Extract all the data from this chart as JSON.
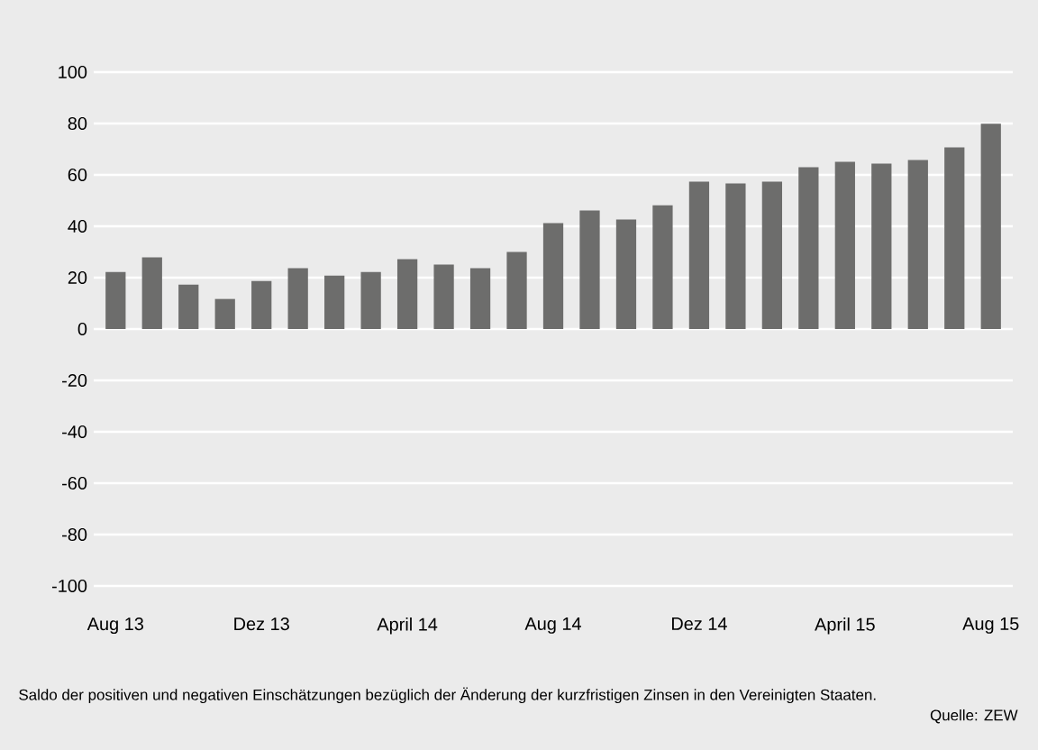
{
  "chart_data": {
    "type": "bar",
    "categories": [
      "Aug 13",
      null,
      null,
      null,
      "Dez 13",
      null,
      null,
      null,
      "April 14",
      null,
      null,
      null,
      "Aug 14",
      null,
      null,
      null,
      "Dez 14",
      null,
      null,
      null,
      "April 15",
      null,
      null,
      null,
      "Aug 15"
    ],
    "values": [
      22.2,
      27.9,
      17.3,
      11.7,
      18.7,
      23.7,
      20.8,
      22.2,
      27.2,
      25.1,
      23.7,
      30.0,
      41.2,
      46.1,
      42.6,
      48.2,
      57.4,
      56.7,
      57.4,
      63.0,
      65.1,
      64.4,
      65.8,
      70.7,
      79.9
    ],
    "color": "#6d6d6c",
    "ylim": [
      -100,
      100
    ],
    "yticks": [
      -100,
      -80,
      -60,
      -40,
      -20,
      0,
      20,
      40,
      60,
      80,
      100
    ],
    "grid": "y",
    "annotations": [
      "Saldo der positiven und negativen Einschätzungen bezüglich der Änderung der kurzfristigen Zinsen in den Vereinigten Staaten.",
      "Quelle: ZEW"
    ]
  }
}
